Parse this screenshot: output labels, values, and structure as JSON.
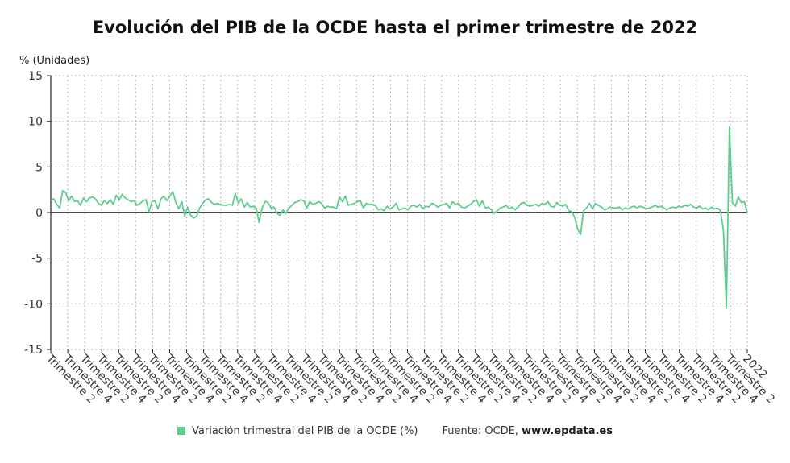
{
  "chart_data": {
    "type": "line",
    "title": "Evolución del PIB de la OCDE hasta el primer trimestre de 2022",
    "ylabel": "% (Unidades)",
    "ylim": [
      -15,
      15
    ],
    "yticks": [
      15,
      10,
      5,
      0,
      -5,
      -10,
      -15
    ],
    "grid": true,
    "legend_position": "bottom",
    "x_tick_labels": [
      "Trimestre 2",
      "Trimestre 4",
      "Trimestre 2",
      "Trimestre 4",
      "Trimestre 2",
      "Trimestre 4",
      "Trimestre 2",
      "Trimestre 4",
      "Trimestre 2",
      "Trimestre 4",
      "Trimestre 2",
      "Trimestre 4",
      "Trimestre 2",
      "Trimestre 4",
      "Trimestre 2",
      "Trimestre 4",
      "Trimestre 2",
      "Trimestre 4",
      "Trimestre 2",
      "Trimestre 4",
      "Trimestre 2",
      "Trimestre 4",
      "Trimestre 2",
      "Trimestre 4",
      "Trimestre 2",
      "Trimestre 4",
      "Trimestre 2",
      "Trimestre 4",
      "Trimestre 2",
      "Trimestre 4",
      "Trimestre 2",
      "Trimestre 4",
      "Trimestre 2",
      "Trimestre 4",
      "Trimestre 2",
      "Trimestre 4",
      "Trimestre 2",
      "Trimestre 4",
      "Trimestre 2",
      "Trimestre 4",
      "Trimestre 2",
      "2022"
    ],
    "series": [
      {
        "name": "Variación trimestral del PIB de la OCDE (%)",
        "color": "#5dce8d",
        "values": [
          1.3,
          1.5,
          0.9,
          0.5,
          2.4,
          2.2,
          1.3,
          1.8,
          1.2,
          1.3,
          0.8,
          1.6,
          1.2,
          1.6,
          1.7,
          1.5,
          1.0,
          0.8,
          1.3,
          1.0,
          1.4,
          0.9,
          1.9,
          1.4,
          2.0,
          1.6,
          1.4,
          1.2,
          1.3,
          0.8,
          1.0,
          1.3,
          1.4,
          0.1,
          1.2,
          1.3,
          0.4,
          1.5,
          1.8,
          1.3,
          1.8,
          2.3,
          1.1,
          0.4,
          1.2,
          -0.4,
          0.6,
          -0.3,
          -0.6,
          -0.4,
          0.5,
          1.0,
          1.4,
          1.5,
          1.1,
          0.9,
          1.0,
          0.9,
          0.8,
          0.8,
          0.9,
          0.8,
          2.1,
          1.0,
          1.5,
          0.6,
          1.1,
          0.6,
          0.7,
          0.5,
          -1.1,
          0.5,
          1.2,
          1.1,
          0.5,
          0.6,
          -0.1,
          -0.3,
          0.3,
          -0.1,
          0.5,
          0.8,
          1.1,
          1.2,
          1.4,
          1.3,
          0.5,
          1.2,
          0.9,
          1.0,
          1.2,
          1.0,
          0.5,
          0.7,
          0.6,
          0.6,
          0.4,
          1.7,
          1.2,
          1.8,
          0.8,
          0.9,
          1.0,
          1.2,
          1.3,
          0.5,
          1.0,
          0.9,
          0.9,
          0.8,
          0.3,
          0.4,
          0.2,
          0.7,
          0.4,
          0.6,
          1.0,
          0.3,
          0.4,
          0.5,
          0.3,
          0.7,
          0.8,
          0.6,
          0.9,
          0.4,
          0.7,
          0.6,
          1.0,
          0.9,
          0.6,
          0.8,
          0.9,
          1.0,
          0.5,
          1.2,
          0.9,
          1.0,
          0.6,
          0.5,
          0.7,
          0.9,
          1.2,
          1.4,
          0.7,
          1.3,
          0.5,
          0.6,
          0.3,
          -0.1,
          0.2,
          0.5,
          0.6,
          0.8,
          0.4,
          0.6,
          0.3,
          0.6,
          1.0,
          1.1,
          0.8,
          0.7,
          0.8,
          0.9,
          0.7,
          1.0,
          0.9,
          1.2,
          0.7,
          0.6,
          1.1,
          0.8,
          0.7,
          0.9,
          0.2,
          0.1,
          -0.5,
          -1.8,
          -2.4,
          0.2,
          0.5,
          1.0,
          0.4,
          1.0,
          0.8,
          0.6,
          0.3,
          0.4,
          0.6,
          0.5,
          0.5,
          0.6,
          0.3,
          0.5,
          0.4,
          0.6,
          0.7,
          0.5,
          0.7,
          0.6,
          0.4,
          0.5,
          0.6,
          0.8,
          0.6,
          0.7,
          0.5,
          0.3,
          0.5,
          0.6,
          0.5,
          0.7,
          0.6,
          0.8,
          0.7,
          0.9,
          0.6,
          0.5,
          0.7,
          0.4,
          0.5,
          0.3,
          0.6,
          0.4,
          0.5,
          0.2,
          -2.0,
          -10.5,
          9.4,
          1.1,
          0.7,
          1.7,
          1.1,
          1.2,
          0.0
        ]
      }
    ]
  },
  "footer": {
    "legend_label": "Variación trimestral del PIB de la OCDE (%)",
    "source_prefix": "Fuente: OCDE, ",
    "source_site": "www.epdata.es"
  }
}
